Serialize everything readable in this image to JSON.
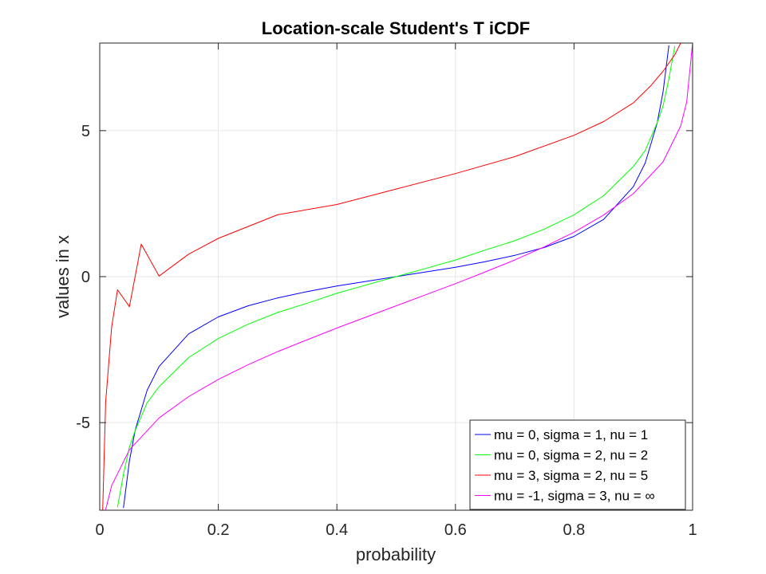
{
  "chart_data": {
    "type": "line",
    "title": "Location-scale Student's T iCDF",
    "xlabel": "probability",
    "ylabel": "values in x",
    "xlim": [
      0,
      1
    ],
    "ylim": [
      -8,
      8
    ],
    "xticks": [
      0,
      0.2,
      0.4,
      0.6,
      0.8,
      1
    ],
    "xtick_labels": [
      "0",
      "0.2",
      "0.4",
      "0.6",
      "0.8",
      "1"
    ],
    "yticks": [
      -5,
      0,
      5
    ],
    "ytick_labels": [
      "-5",
      "0",
      "5"
    ],
    "grid": true,
    "legend_position": "bottom-right",
    "series": [
      {
        "name": "mu = 0, sigma = 1, nu = 1",
        "color": "#0000ff",
        "x": [
          0.04,
          0.05,
          0.06,
          0.08,
          0.1,
          0.15,
          0.2,
          0.25,
          0.3,
          0.35,
          0.4,
          0.45,
          0.5,
          0.55,
          0.6,
          0.65,
          0.7,
          0.75,
          0.8,
          0.85,
          0.9,
          0.92,
          0.94,
          0.95,
          0.96
        ],
        "y": [
          -7.92,
          -6.31,
          -5.24,
          -3.89,
          -3.08,
          -1.96,
          -1.38,
          -1.0,
          -0.73,
          -0.51,
          -0.32,
          -0.16,
          0.0,
          0.16,
          0.32,
          0.51,
          0.73,
          1.0,
          1.38,
          1.96,
          3.08,
          3.89,
          5.24,
          6.31,
          7.92
        ]
      },
      {
        "name": "mu = 0, sigma = 2, nu = 2",
        "color": "#00ff00",
        "x": [
          0.03,
          0.04,
          0.05,
          0.06,
          0.08,
          0.1,
          0.15,
          0.2,
          0.25,
          0.3,
          0.35,
          0.4,
          0.45,
          0.5,
          0.55,
          0.6,
          0.65,
          0.7,
          0.75,
          0.8,
          0.85,
          0.9,
          0.92,
          0.94,
          0.95,
          0.96,
          0.97
        ],
        "y": [
          -7.9,
          -6.77,
          -5.84,
          -5.26,
          -4.32,
          -3.77,
          -2.77,
          -2.12,
          -1.63,
          -1.23,
          -0.91,
          -0.57,
          -0.28,
          0.0,
          0.28,
          0.57,
          0.91,
          1.23,
          1.63,
          2.12,
          2.77,
          3.77,
          4.32,
          5.26,
          5.84,
          6.77,
          7.9
        ]
      },
      {
        "name": "mu = 3, sigma = 2, nu = 5",
        "color": "#ff0000",
        "x": [
          0.005,
          0.01,
          0.02,
          0.03,
          0.05,
          0.07,
          0.1,
          0.15,
          0.2,
          0.3,
          0.4,
          0.5,
          0.6,
          0.7,
          0.8,
          0.85,
          0.9,
          0.93,
          0.95,
          0.97,
          0.98
        ],
        "y": [
          -8.0,
          -4.3,
          -1.73,
          -0.45,
          -1.03,
          1.11,
          0.02,
          0.77,
          1.31,
          2.12,
          2.47,
          3.0,
          3.53,
          4.11,
          4.84,
          5.31,
          5.95,
          6.55,
          7.03,
          7.6,
          8.0
        ]
      },
      {
        "name": "mu = -1, sigma = 3, nu = ∞",
        "color": "#ff00ff",
        "x": [
          0.01,
          0.02,
          0.05,
          0.1,
          0.15,
          0.2,
          0.25,
          0.3,
          0.35,
          0.4,
          0.45,
          0.5,
          0.55,
          0.6,
          0.65,
          0.7,
          0.75,
          0.8,
          0.85,
          0.9,
          0.95,
          0.98,
          0.99,
          1.0
        ],
        "y": [
          -7.98,
          -7.16,
          -5.93,
          -4.84,
          -4.11,
          -3.52,
          -3.02,
          -2.57,
          -2.16,
          -1.76,
          -1.38,
          -1.0,
          -0.62,
          -0.24,
          0.16,
          0.57,
          1.02,
          1.52,
          2.11,
          2.84,
          3.93,
          5.16,
          5.98,
          8.0
        ]
      }
    ]
  }
}
